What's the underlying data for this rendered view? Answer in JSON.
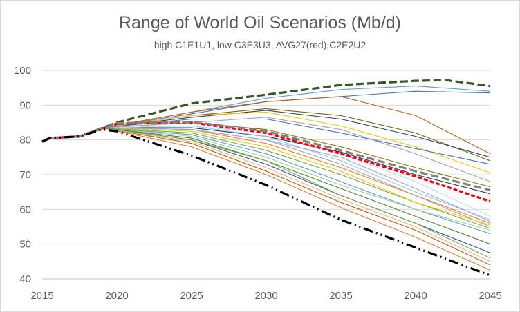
{
  "chart_data": {
    "type": "line",
    "title": "Range of World Oil Scenarios (Mb/d)",
    "subtitle": "high C1E1U1, low C3E3U3, AVG27(red),C2E2U2",
    "xlabel": "",
    "ylabel": "",
    "xlim": [
      2015,
      2045
    ],
    "ylim": [
      40,
      100
    ],
    "x_ticks": [
      2015,
      2020,
      2025,
      2030,
      2035,
      2040,
      2045
    ],
    "y_ticks": [
      40,
      50,
      60,
      70,
      80,
      90,
      100
    ],
    "grid": "horizontal",
    "legend": "none",
    "highlight_series": [
      {
        "style": "high",
        "color": "#375623",
        "dash": "long-dash",
        "points": [
          [
            2015,
            79.5
          ],
          [
            2015.5,
            80.5
          ],
          [
            2017.5,
            81
          ],
          [
            2020,
            85
          ],
          [
            2025,
            90.5
          ],
          [
            2030,
            93
          ],
          [
            2035,
            95.8
          ],
          [
            2040,
            97
          ],
          [
            2042,
            97.2
          ],
          [
            2045,
            95.5
          ]
        ]
      },
      {
        "style": "avg",
        "color": "#ff0000",
        "dash": "short-dash",
        "points": [
          [
            2015,
            79.5
          ],
          [
            2015.5,
            80.5
          ],
          [
            2017.5,
            81
          ],
          [
            2020,
            84.7
          ],
          [
            2025,
            85
          ],
          [
            2030,
            82
          ],
          [
            2035,
            76
          ],
          [
            2040,
            69.5
          ],
          [
            2045,
            62.3
          ]
        ]
      },
      {
        "style": "mid",
        "color": "#808080",
        "dash": "long-dash",
        "points": [
          [
            2015,
            79.5
          ],
          [
            2015.5,
            80.5
          ],
          [
            2017.5,
            81
          ],
          [
            2020,
            84.8
          ],
          [
            2025,
            85.2
          ],
          [
            2030,
            82.5
          ],
          [
            2035,
            77
          ],
          [
            2040,
            71
          ],
          [
            2045,
            65.5
          ]
        ]
      },
      {
        "style": "low",
        "color": "#000000",
        "dash": "dash-dot-dot",
        "points": [
          [
            2015,
            79.5
          ],
          [
            2015.5,
            80.5
          ],
          [
            2017.5,
            81
          ],
          [
            2019,
            83
          ],
          [
            2020,
            82.5
          ],
          [
            2025,
            75.5
          ],
          [
            2030,
            67
          ],
          [
            2035,
            57
          ],
          [
            2040,
            49
          ],
          [
            2045,
            41
          ]
        ]
      }
    ],
    "series": [
      {
        "color": "#5b9bd5",
        "points": [
          [
            2019,
            83.5
          ],
          [
            2025,
            88
          ],
          [
            2030,
            92
          ],
          [
            2035,
            94.5
          ],
          [
            2040,
            95.5
          ],
          [
            2045,
            94
          ]
        ]
      },
      {
        "color": "#4472c4",
        "points": [
          [
            2019,
            83.5
          ],
          [
            2025,
            87.5
          ],
          [
            2030,
            91
          ],
          [
            2035,
            92.5
          ],
          [
            2040,
            94
          ],
          [
            2045,
            93.5
          ]
        ]
      },
      {
        "color": "#c55a11",
        "points": [
          [
            2019,
            83.5
          ],
          [
            2025,
            88
          ],
          [
            2030,
            91
          ],
          [
            2035,
            92.5
          ],
          [
            2040,
            87
          ],
          [
            2045,
            76
          ]
        ]
      },
      {
        "color": "#7f6000",
        "points": [
          [
            2019,
            83.5
          ],
          [
            2025,
            87
          ],
          [
            2030,
            89
          ],
          [
            2035,
            87
          ],
          [
            2040,
            82
          ],
          [
            2045,
            74
          ]
        ]
      },
      {
        "color": "#264478",
        "points": [
          [
            2019,
            83.5
          ],
          [
            2025,
            86.5
          ],
          [
            2030,
            88.5
          ],
          [
            2035,
            86
          ],
          [
            2040,
            81
          ],
          [
            2045,
            75
          ]
        ]
      },
      {
        "color": "#ffc000",
        "points": [
          [
            2019,
            83.5
          ],
          [
            2025,
            87
          ],
          [
            2030,
            88
          ],
          [
            2035,
            84
          ],
          [
            2040,
            78
          ],
          [
            2045,
            70.5
          ]
        ]
      },
      {
        "color": "#4472c4",
        "points": [
          [
            2019,
            83.5
          ],
          [
            2025,
            86
          ],
          [
            2030,
            86
          ],
          [
            2035,
            82
          ],
          [
            2040,
            77.5
          ],
          [
            2045,
            73
          ]
        ]
      },
      {
        "color": "#997300",
        "points": [
          [
            2019,
            83.5
          ],
          [
            2025,
            85
          ],
          [
            2030,
            83
          ],
          [
            2035,
            78
          ],
          [
            2040,
            72
          ],
          [
            2045,
            66.5
          ]
        ]
      },
      {
        "color": "#203864",
        "points": [
          [
            2019,
            83.5
          ],
          [
            2025,
            83.5
          ],
          [
            2030,
            81
          ],
          [
            2035,
            76.5
          ],
          [
            2040,
            70
          ],
          [
            2045,
            64.5
          ]
        ]
      },
      {
        "color": "#9dc3e6",
        "points": [
          [
            2019,
            83.5
          ],
          [
            2025,
            84
          ],
          [
            2030,
            81
          ],
          [
            2035,
            74
          ],
          [
            2040,
            65
          ],
          [
            2045,
            57
          ]
        ]
      },
      {
        "color": "#ed7d31",
        "points": [
          [
            2019,
            83.5
          ],
          [
            2025,
            83
          ],
          [
            2030,
            79
          ],
          [
            2035,
            72
          ],
          [
            2040,
            64
          ],
          [
            2045,
            56
          ]
        ]
      },
      {
        "color": "#a5a5a5",
        "points": [
          [
            2019,
            83.5
          ],
          [
            2025,
            83
          ],
          [
            2030,
            80
          ],
          [
            2035,
            73
          ],
          [
            2040,
            64
          ],
          [
            2045,
            55
          ]
        ]
      },
      {
        "color": "#70ad47",
        "points": [
          [
            2019,
            83.5
          ],
          [
            2025,
            82
          ],
          [
            2030,
            77
          ],
          [
            2035,
            70
          ],
          [
            2040,
            62
          ],
          [
            2045,
            54.5
          ]
        ]
      },
      {
        "color": "#ffc000",
        "points": [
          [
            2019,
            83.5
          ],
          [
            2025,
            82.5
          ],
          [
            2030,
            78
          ],
          [
            2035,
            71
          ],
          [
            2040,
            62
          ],
          [
            2045,
            55.5
          ]
        ]
      },
      {
        "color": "#5b9bd5",
        "points": [
          [
            2019,
            83.5
          ],
          [
            2025,
            81.5
          ],
          [
            2030,
            76
          ],
          [
            2035,
            68
          ],
          [
            2040,
            60
          ],
          [
            2045,
            53
          ]
        ]
      },
      {
        "color": "#a9d18e",
        "points": [
          [
            2019,
            83.5
          ],
          [
            2025,
            81
          ],
          [
            2030,
            75
          ],
          [
            2035,
            67
          ],
          [
            2040,
            60
          ],
          [
            2045,
            54
          ]
        ]
      },
      {
        "color": "#548235",
        "points": [
          [
            2019,
            83.5
          ],
          [
            2025,
            80.5
          ],
          [
            2030,
            74
          ],
          [
            2035,
            66
          ],
          [
            2040,
            58
          ],
          [
            2045,
            50
          ]
        ]
      },
      {
        "color": "#2f5597",
        "points": [
          [
            2019,
            83.5
          ],
          [
            2025,
            80
          ],
          [
            2030,
            73
          ],
          [
            2035,
            64
          ],
          [
            2040,
            56
          ],
          [
            2045,
            47.5
          ]
        ]
      },
      {
        "color": "#c55a11",
        "points": [
          [
            2019,
            83.5
          ],
          [
            2025,
            79
          ],
          [
            2030,
            71
          ],
          [
            2035,
            62
          ],
          [
            2040,
            54
          ],
          [
            2045,
            44
          ]
        ]
      },
      {
        "color": "#f4b183",
        "points": [
          [
            2019,
            83.5
          ],
          [
            2025,
            79.5
          ],
          [
            2030,
            72
          ],
          [
            2035,
            63
          ],
          [
            2040,
            55
          ],
          [
            2045,
            45
          ]
        ]
      },
      {
        "color": "#ed7d31",
        "points": [
          [
            2019,
            83.5
          ],
          [
            2025,
            78
          ],
          [
            2030,
            70
          ],
          [
            2035,
            60.5
          ],
          [
            2040,
            52
          ],
          [
            2045,
            42.5
          ]
        ]
      },
      {
        "color": "#70ad47",
        "points": [
          [
            2019,
            83.5
          ],
          [
            2025,
            80
          ],
          [
            2030,
            74
          ],
          [
            2035,
            64
          ],
          [
            2040,
            56
          ],
          [
            2045,
            46
          ]
        ]
      },
      {
        "color": "#bdd7ee",
        "points": [
          [
            2019,
            83.5
          ],
          [
            2025,
            84
          ],
          [
            2030,
            82
          ],
          [
            2035,
            76
          ],
          [
            2040,
            68
          ],
          [
            2045,
            58
          ]
        ]
      },
      {
        "color": "#8faadc",
        "points": [
          [
            2019,
            83.5
          ],
          [
            2025,
            83
          ],
          [
            2030,
            80
          ],
          [
            2035,
            75
          ],
          [
            2040,
            66
          ],
          [
            2045,
            56.5
          ]
        ]
      },
      {
        "color": "#a5a5a5",
        "points": [
          [
            2019,
            83.5
          ],
          [
            2025,
            85
          ],
          [
            2030,
            86.5
          ],
          [
            2035,
            83
          ],
          [
            2040,
            76
          ],
          [
            2045,
            68
          ]
        ]
      }
    ]
  }
}
